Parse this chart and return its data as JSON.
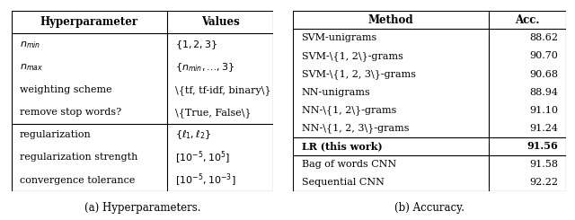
{
  "table_a": {
    "caption": "(a) Hyperparameters.",
    "col_headers": [
      "Hyperparameter",
      "Values"
    ],
    "groups": [
      {
        "rows": [
          [
            "$n_{min}$",
            "$\\{1, 2, 3\\}$"
          ],
          [
            "$n_{max}$",
            "$\\{n_{min}, \\ldots, 3\\}$"
          ],
          [
            "weighting scheme",
            "\\{tf, tf-idf, binary\\}"
          ],
          [
            "remove stop words?",
            "\\{True, False\\}"
          ]
        ]
      },
      {
        "rows": [
          [
            "regularization",
            "$\\{\\ell_1, \\ell_2\\}$"
          ],
          [
            "regularization strength",
            "$[10^{-5}, 10^{5}]$"
          ],
          [
            "convergence tolerance",
            "$[10^{-5}, 10^{-3}]$"
          ]
        ]
      }
    ]
  },
  "table_b": {
    "caption": "(b) Accuracy.",
    "col_headers": [
      "Method",
      "Acc."
    ],
    "groups": [
      {
        "bold_row": null,
        "rows": [
          [
            "SVM-unigrams",
            "88.62"
          ],
          [
            "SVM-\\{1, 2\\}-grams",
            "90.70"
          ],
          [
            "SVM-\\{1, 2, 3\\}-grams",
            "90.68"
          ],
          [
            "NN-unigrams",
            "88.94"
          ],
          [
            "NN-\\{1, 2\\}-grams",
            "91.10"
          ],
          [
            "NN-\\{1, 2, 3\\}-grams",
            "91.24"
          ]
        ]
      },
      {
        "bold_row": 0,
        "rows": [
          [
            "LR (this work)",
            "91.56"
          ]
        ]
      },
      {
        "bold_row": null,
        "rows": [
          [
            "Bag of words CNN",
            "91.58"
          ],
          [
            "Sequential CNN",
            "92.22"
          ]
        ]
      }
    ]
  },
  "background_color": "#ffffff",
  "header_fontsize": 8.5,
  "cell_fontsize": 8.0,
  "caption_fontsize": 8.5,
  "fig_width": 6.4,
  "fig_height": 2.45,
  "fig_dpi": 100
}
